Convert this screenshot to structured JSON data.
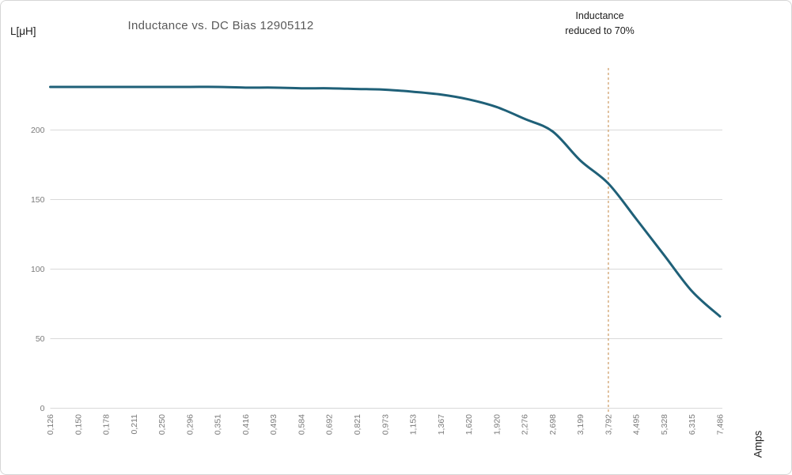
{
  "title": "Inductance vs. DC Bias 12905112",
  "y_axis_unit": "L[μH]",
  "x_axis_unit": "Amps",
  "annotation": {
    "line1": "Inductance",
    "line2": "reduced to 70%"
  },
  "colors": {
    "curve": "#1f6078",
    "dashed_threshold": "#cc9a60",
    "gridline": "#d9d9d9",
    "axis_tick_label": "#7a7a7a",
    "title_text": "#595959",
    "dark_text": "#1d1d1d",
    "card_border": "#d6d6d6",
    "background": "#ffffff"
  },
  "chart_data": {
    "type": "line",
    "title": "Inductance vs. DC Bias 12905112",
    "xlabel": "Amps",
    "ylabel": "L[μH]",
    "x_categories": [
      "0,126",
      "0,150",
      "0,178",
      "0,211",
      "0,250",
      "0,296",
      "0,351",
      "0,416",
      "0,493",
      "0,584",
      "0,692",
      "0,821",
      "0,973",
      "1,153",
      "1,367",
      "1,620",
      "1,920",
      "2,276",
      "2,698",
      "3,199",
      "3,792",
      "4,495",
      "5,328",
      "6,315",
      "7,486"
    ],
    "series": [
      {
        "name": "Inductance",
        "values": [
          231,
          231,
          231,
          231,
          231,
          231,
          231,
          230.5,
          230.5,
          230,
          230,
          229.5,
          229,
          227.5,
          225.5,
          222,
          216.5,
          208,
          199,
          178,
          161.5,
          136,
          110,
          84,
          66
        ]
      }
    ],
    "y_ticks": [
      0,
      50,
      100,
      150,
      200
    ],
    "ylim": [
      0,
      243
    ],
    "grid": "horizontal-only",
    "legend": "none",
    "threshold": {
      "category": "3,792",
      "label": "Inductance reduced to 70%",
      "style": "dashed-vertical"
    }
  }
}
